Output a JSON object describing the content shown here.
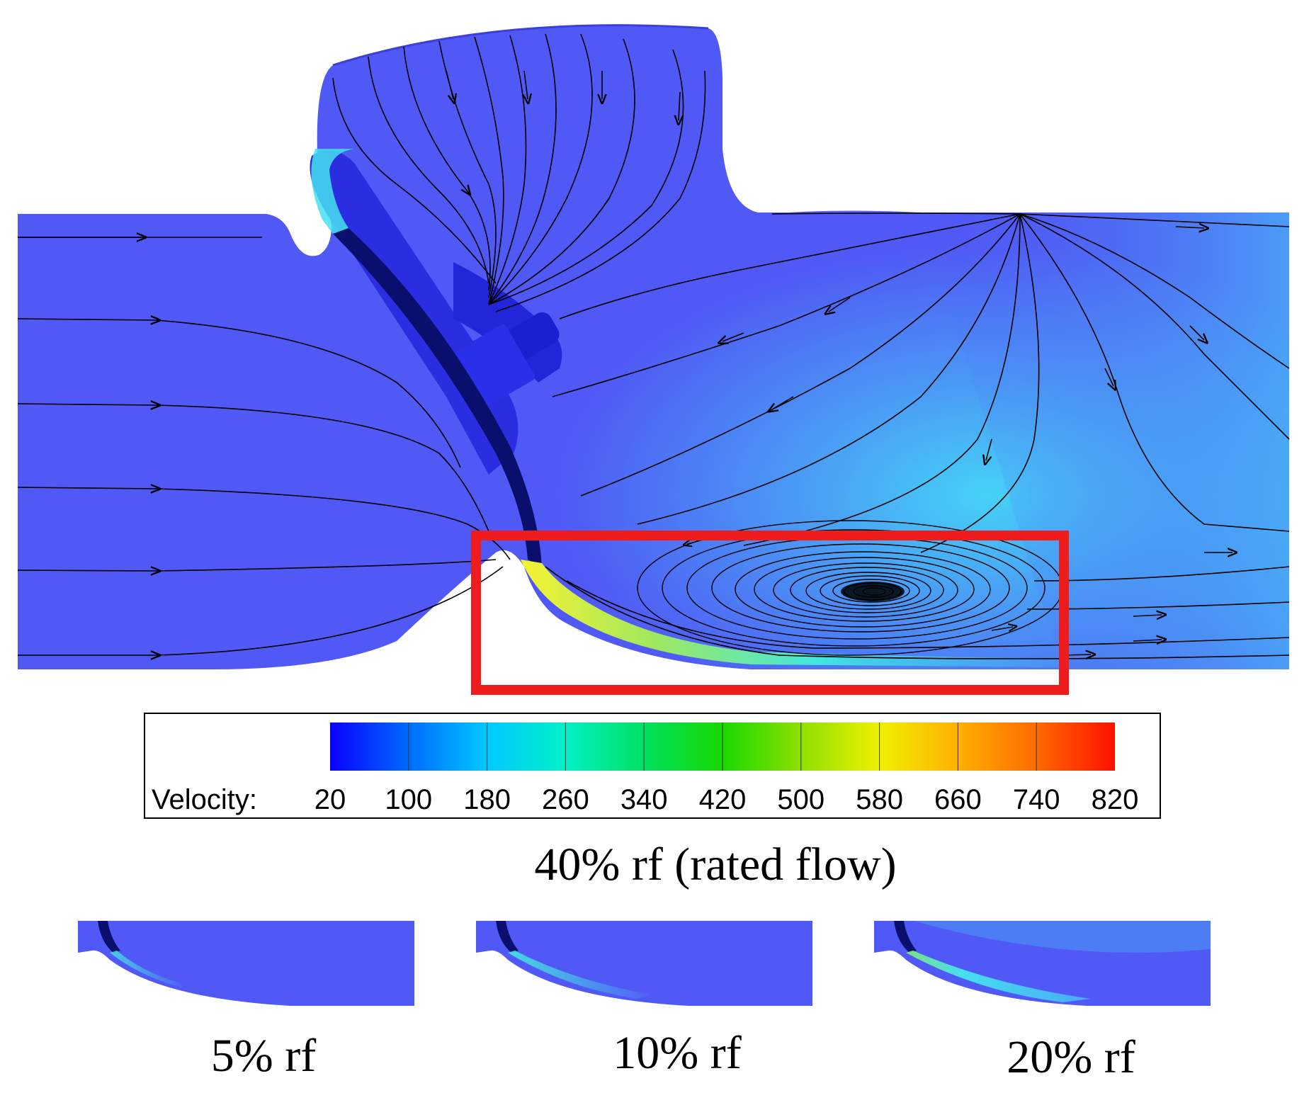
{
  "main_panel": {
    "caption": "40% rf (rated flow)",
    "highlight_color": "#ee1c1c"
  },
  "colorbar": {
    "label": "Velocity:",
    "ticks": [
      "20",
      "100",
      "180",
      "260",
      "340",
      "420",
      "500",
      "580",
      "660",
      "740",
      "820"
    ],
    "colors": [
      "#0a00ff",
      "#006bff",
      "#00c8ff",
      "#00f0c8",
      "#00e060",
      "#18d800",
      "#8ee000",
      "#f0f000",
      "#ffb000",
      "#ff6a00",
      "#ff1000"
    ]
  },
  "small_panels": [
    {
      "caption": "5% rf"
    },
    {
      "caption": "10% rf"
    },
    {
      "caption": "20% rf"
    }
  ],
  "colors": {
    "field_low": "#5055f5",
    "field_mid": "#4c8df5",
    "field_high": "#45d8f6",
    "disc": "#0a0f6e",
    "streamline": "#000000"
  }
}
